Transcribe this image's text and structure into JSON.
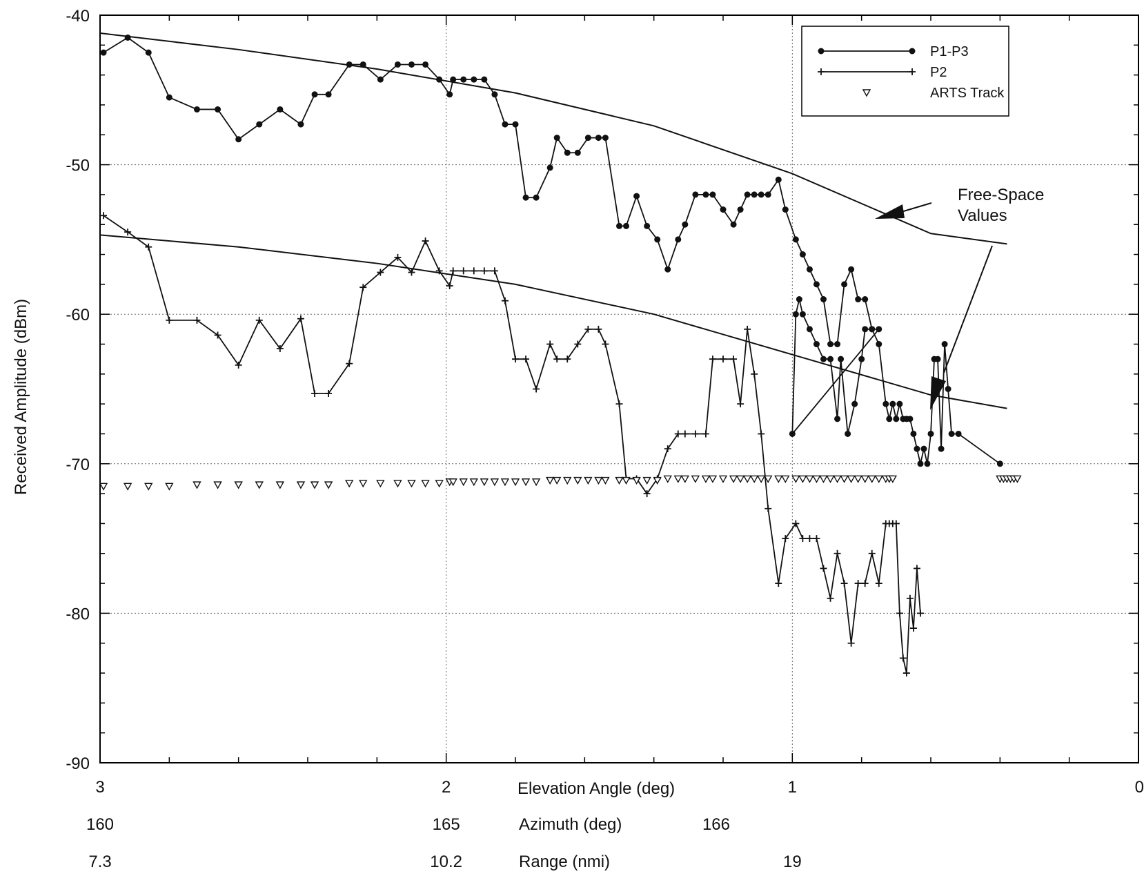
{
  "chart_data": {
    "type": "line",
    "ylabel": "Received Amplitude (dBm)",
    "xlabel": "Elevation Angle (deg)",
    "xlim": [
      3,
      0
    ],
    "ylim": [
      -90,
      -40
    ],
    "y_ticks": [
      -40,
      -50,
      -60,
      -70,
      -80,
      -90
    ],
    "x_ticks": [
      3,
      2,
      1,
      0
    ],
    "grid": true,
    "legend_position": "top-right",
    "secondary_axes": [
      {
        "label": "Azimuth (deg)",
        "ticks": [
          {
            "x": 3,
            "text": "160"
          },
          {
            "x": 2,
            "text": "165"
          },
          {
            "x": 1.22,
            "text": "166"
          }
        ]
      },
      {
        "label": "Range (nmi)",
        "ticks": [
          {
            "x": 3,
            "text": "7.3"
          },
          {
            "x": 2,
            "text": "10.2"
          },
          {
            "x": 1.0,
            "text": "19"
          }
        ]
      }
    ],
    "annotation": "Free-Space\nValues",
    "series": [
      {
        "name": "P1-P3",
        "marker": "circle",
        "points": [
          [
            2.99,
            -42.5
          ],
          [
            2.92,
            -41.5
          ],
          [
            2.86,
            -42.5
          ],
          [
            2.8,
            -45.5
          ],
          [
            2.72,
            -46.3
          ],
          [
            2.66,
            -46.3
          ],
          [
            2.6,
            -48.3
          ],
          [
            2.54,
            -47.3
          ],
          [
            2.48,
            -46.3
          ],
          [
            2.42,
            -47.3
          ],
          [
            2.38,
            -45.3
          ],
          [
            2.34,
            -45.3
          ],
          [
            2.28,
            -43.3
          ],
          [
            2.24,
            -43.3
          ],
          [
            2.19,
            -44.3
          ],
          [
            2.14,
            -43.3
          ],
          [
            2.1,
            -43.3
          ],
          [
            2.06,
            -43.3
          ],
          [
            2.02,
            -44.3
          ],
          [
            1.99,
            -45.3
          ],
          [
            1.98,
            -44.3
          ],
          [
            1.95,
            -44.3
          ],
          [
            1.92,
            -44.3
          ],
          [
            1.89,
            -44.3
          ],
          [
            1.86,
            -45.3
          ],
          [
            1.83,
            -47.3
          ],
          [
            1.8,
            -47.3
          ],
          [
            1.77,
            -52.2
          ],
          [
            1.74,
            -52.2
          ],
          [
            1.7,
            -50.2
          ],
          [
            1.68,
            -48.2
          ],
          [
            1.65,
            -49.2
          ],
          [
            1.62,
            -49.2
          ],
          [
            1.59,
            -48.2
          ],
          [
            1.56,
            -48.2
          ],
          [
            1.54,
            -48.2
          ],
          [
            1.5,
            -54.1
          ],
          [
            1.48,
            -54.1
          ],
          [
            1.45,
            -52.1
          ],
          [
            1.42,
            -54.1
          ],
          [
            1.39,
            -55.0
          ],
          [
            1.36,
            -57.0
          ],
          [
            1.33,
            -55.0
          ],
          [
            1.31,
            -54.0
          ],
          [
            1.28,
            -52.0
          ],
          [
            1.25,
            -52.0
          ],
          [
            1.23,
            -52.0
          ],
          [
            1.2,
            -53.0
          ],
          [
            1.17,
            -54.0
          ],
          [
            1.15,
            -53.0
          ],
          [
            1.13,
            -52.0
          ],
          [
            1.11,
            -52.0
          ],
          [
            1.09,
            -52.0
          ],
          [
            1.07,
            -52.0
          ],
          [
            1.04,
            -51.0
          ],
          [
            1.02,
            -53.0
          ],
          [
            0.99,
            -55.0
          ],
          [
            0.97,
            -56.0
          ],
          [
            0.95,
            -57.0
          ],
          [
            0.93,
            -58.0
          ],
          [
            0.91,
            -59.0
          ],
          [
            0.89,
            -62.0
          ],
          [
            0.87,
            -62.0
          ],
          [
            0.85,
            -58.0
          ],
          [
            0.83,
            -57.0
          ],
          [
            0.81,
            -59.0
          ],
          [
            0.79,
            -59.0
          ],
          [
            0.77,
            -61.0
          ],
          [
            0.75,
            -61.0
          ],
          [
            1.0,
            -68.0
          ],
          [
            0.99,
            -60.0
          ],
          [
            0.98,
            -59.0
          ],
          [
            0.97,
            -60.0
          ],
          [
            0.95,
            -61.0
          ],
          [
            0.93,
            -62.0
          ],
          [
            0.91,
            -63.0
          ],
          [
            0.89,
            -63.0
          ],
          [
            0.87,
            -67.0
          ],
          [
            0.86,
            -63.0
          ],
          [
            0.84,
            -68.0
          ],
          [
            0.82,
            -66.0
          ],
          [
            0.8,
            -63.0
          ],
          [
            0.79,
            -61.0
          ],
          [
            0.77,
            -61.0
          ],
          [
            0.75,
            -62.0
          ],
          [
            0.73,
            -66.0
          ],
          [
            0.72,
            -67.0
          ],
          [
            0.71,
            -66.0
          ],
          [
            0.7,
            -67.0
          ],
          [
            0.69,
            -66.0
          ],
          [
            0.68,
            -67.0
          ],
          [
            0.67,
            -67.0
          ],
          [
            0.66,
            -67.0
          ],
          [
            0.65,
            -68.0
          ],
          [
            0.64,
            -69.0
          ],
          [
            0.63,
            -70.0
          ],
          [
            0.62,
            -69.0
          ],
          [
            0.61,
            -70.0
          ],
          [
            0.6,
            -68.0
          ],
          [
            0.59,
            -63.0
          ],
          [
            0.58,
            -63.0
          ],
          [
            0.57,
            -69.0
          ],
          [
            0.56,
            -62.0
          ],
          [
            0.55,
            -65.0
          ],
          [
            0.54,
            -68.0
          ],
          [
            0.52,
            -68.0
          ],
          [
            0.4,
            -70.0
          ]
        ]
      },
      {
        "name": "P2",
        "marker": "plus",
        "points": [
          [
            2.99,
            -53.4
          ],
          [
            2.92,
            -54.5
          ],
          [
            2.86,
            -55.5
          ],
          [
            2.8,
            -60.4
          ],
          [
            2.72,
            -60.4
          ],
          [
            2.66,
            -61.4
          ],
          [
            2.6,
            -63.4
          ],
          [
            2.54,
            -60.4
          ],
          [
            2.48,
            -62.3
          ],
          [
            2.42,
            -60.3
          ],
          [
            2.38,
            -65.3
          ],
          [
            2.34,
            -65.3
          ],
          [
            2.28,
            -63.3
          ],
          [
            2.24,
            -58.2
          ],
          [
            2.19,
            -57.2
          ],
          [
            2.14,
            -56.2
          ],
          [
            2.1,
            -57.2
          ],
          [
            2.06,
            -55.1
          ],
          [
            2.02,
            -57.1
          ],
          [
            1.99,
            -58.1
          ],
          [
            1.98,
            -57.1
          ],
          [
            1.95,
            -57.1
          ],
          [
            1.92,
            -57.1
          ],
          [
            1.89,
            -57.1
          ],
          [
            1.86,
            -57.1
          ],
          [
            1.83,
            -59.1
          ],
          [
            1.8,
            -63.0
          ],
          [
            1.77,
            -63.0
          ],
          [
            1.74,
            -65.0
          ],
          [
            1.7,
            -62.0
          ],
          [
            1.68,
            -63.0
          ],
          [
            1.65,
            -63.0
          ],
          [
            1.62,
            -62.0
          ],
          [
            1.59,
            -61.0
          ],
          [
            1.56,
            -61.0
          ],
          [
            1.54,
            -62.0
          ],
          [
            1.5,
            -66.0
          ],
          [
            1.48,
            -71.0
          ],
          [
            1.45,
            -71.0
          ],
          [
            1.42,
            -72.0
          ],
          [
            1.39,
            -71.0
          ],
          [
            1.36,
            -69.0
          ],
          [
            1.33,
            -68.0
          ],
          [
            1.31,
            -68.0
          ],
          [
            1.28,
            -68.0
          ],
          [
            1.25,
            -68.0
          ],
          [
            1.23,
            -63.0
          ],
          [
            1.2,
            -63.0
          ],
          [
            1.17,
            -63.0
          ],
          [
            1.15,
            -66.0
          ],
          [
            1.13,
            -61.0
          ],
          [
            1.11,
            -64.0
          ],
          [
            1.09,
            -68.0
          ],
          [
            1.07,
            -73.0
          ],
          [
            1.04,
            -78.0
          ],
          [
            1.02,
            -75.0
          ],
          [
            0.99,
            -74.0
          ],
          [
            0.97,
            -75.0
          ],
          [
            0.95,
            -75.0
          ],
          [
            0.93,
            -75.0
          ],
          [
            0.91,
            -77.0
          ],
          [
            0.89,
            -79.0
          ],
          [
            0.87,
            -76.0
          ],
          [
            0.85,
            -78.0
          ],
          [
            0.83,
            -82.0
          ],
          [
            0.81,
            -78.0
          ],
          [
            0.79,
            -78.0
          ],
          [
            0.77,
            -76.0
          ],
          [
            0.75,
            -78.0
          ],
          [
            0.73,
            -74.0
          ],
          [
            0.72,
            -74.0
          ],
          [
            0.71,
            -74.0
          ],
          [
            0.7,
            -74.0
          ],
          [
            0.69,
            -80.0
          ],
          [
            0.68,
            -83.0
          ],
          [
            0.67,
            -84.0
          ],
          [
            0.66,
            -79.0
          ],
          [
            0.65,
            -81.0
          ],
          [
            0.64,
            -77.0
          ],
          [
            0.63,
            -80.0
          ]
        ]
      },
      {
        "name": "ARTS Track",
        "marker": "triangle-down",
        "points": [
          [
            2.99,
            -71.5
          ],
          [
            2.92,
            -71.5
          ],
          [
            2.86,
            -71.5
          ],
          [
            2.8,
            -71.5
          ],
          [
            2.72,
            -71.4
          ],
          [
            2.66,
            -71.4
          ],
          [
            2.6,
            -71.4
          ],
          [
            2.54,
            -71.4
          ],
          [
            2.48,
            -71.4
          ],
          [
            2.42,
            -71.4
          ],
          [
            2.38,
            -71.4
          ],
          [
            2.34,
            -71.4
          ],
          [
            2.28,
            -71.3
          ],
          [
            2.24,
            -71.3
          ],
          [
            2.19,
            -71.3
          ],
          [
            2.14,
            -71.3
          ],
          [
            2.1,
            -71.3
          ],
          [
            2.06,
            -71.3
          ],
          [
            2.02,
            -71.3
          ],
          [
            1.99,
            -71.2
          ],
          [
            1.98,
            -71.2
          ],
          [
            1.95,
            -71.2
          ],
          [
            1.92,
            -71.2
          ],
          [
            1.89,
            -71.2
          ],
          [
            1.86,
            -71.2
          ],
          [
            1.83,
            -71.2
          ],
          [
            1.8,
            -71.2
          ],
          [
            1.77,
            -71.2
          ],
          [
            1.74,
            -71.2
          ],
          [
            1.7,
            -71.1
          ],
          [
            1.68,
            -71.1
          ],
          [
            1.65,
            -71.1
          ],
          [
            1.62,
            -71.1
          ],
          [
            1.59,
            -71.1
          ],
          [
            1.56,
            -71.1
          ],
          [
            1.54,
            -71.1
          ],
          [
            1.5,
            -71.1
          ],
          [
            1.48,
            -71.1
          ],
          [
            1.45,
            -71.1
          ],
          [
            1.42,
            -71.1
          ],
          [
            1.39,
            -71.1
          ],
          [
            1.36,
            -71.0
          ],
          [
            1.33,
            -71.0
          ],
          [
            1.31,
            -71.0
          ],
          [
            1.28,
            -71.0
          ],
          [
            1.25,
            -71.0
          ],
          [
            1.23,
            -71.0
          ],
          [
            1.2,
            -71.0
          ],
          [
            1.17,
            -71.0
          ],
          [
            1.15,
            -71.0
          ],
          [
            1.13,
            -71.0
          ],
          [
            1.11,
            -71.0
          ],
          [
            1.09,
            -71.0
          ],
          [
            1.07,
            -71.0
          ],
          [
            1.04,
            -71.0
          ],
          [
            1.02,
            -71.0
          ],
          [
            0.99,
            -71.0
          ],
          [
            0.97,
            -71.0
          ],
          [
            0.95,
            -71.0
          ],
          [
            0.93,
            -71.0
          ],
          [
            0.91,
            -71.0
          ],
          [
            0.89,
            -71.0
          ],
          [
            0.87,
            -71.0
          ],
          [
            0.85,
            -71.0
          ],
          [
            0.83,
            -71.0
          ],
          [
            0.81,
            -71.0
          ],
          [
            0.79,
            -71.0
          ],
          [
            0.77,
            -71.0
          ],
          [
            0.75,
            -71.0
          ],
          [
            0.73,
            -71.0
          ],
          [
            0.72,
            -71.0
          ],
          [
            0.71,
            -71.0
          ],
          [
            0.4,
            -71.0
          ],
          [
            0.39,
            -71.0
          ],
          [
            0.38,
            -71.0
          ],
          [
            0.37,
            -71.0
          ],
          [
            0.36,
            -71.0
          ],
          [
            0.35,
            -71.0
          ]
        ]
      },
      {
        "name": "",
        "marker": "none",
        "points": [
          [
            3.0,
            -41.2
          ],
          [
            2.6,
            -42.3
          ],
          [
            2.2,
            -43.6
          ],
          [
            1.8,
            -45.2
          ],
          [
            1.4,
            -47.4
          ],
          [
            1.0,
            -50.6
          ],
          [
            0.6,
            -54.6
          ],
          [
            0.38,
            -55.3
          ]
        ]
      },
      {
        "name": "",
        "marker": "none",
        "points": [
          [
            3.0,
            -54.7
          ],
          [
            2.6,
            -55.5
          ],
          [
            2.2,
            -56.6
          ],
          [
            1.8,
            -58.0
          ],
          [
            1.4,
            -60.0
          ],
          [
            1.0,
            -62.7
          ],
          [
            0.6,
            -65.4
          ],
          [
            0.38,
            -66.3
          ]
        ]
      }
    ]
  }
}
